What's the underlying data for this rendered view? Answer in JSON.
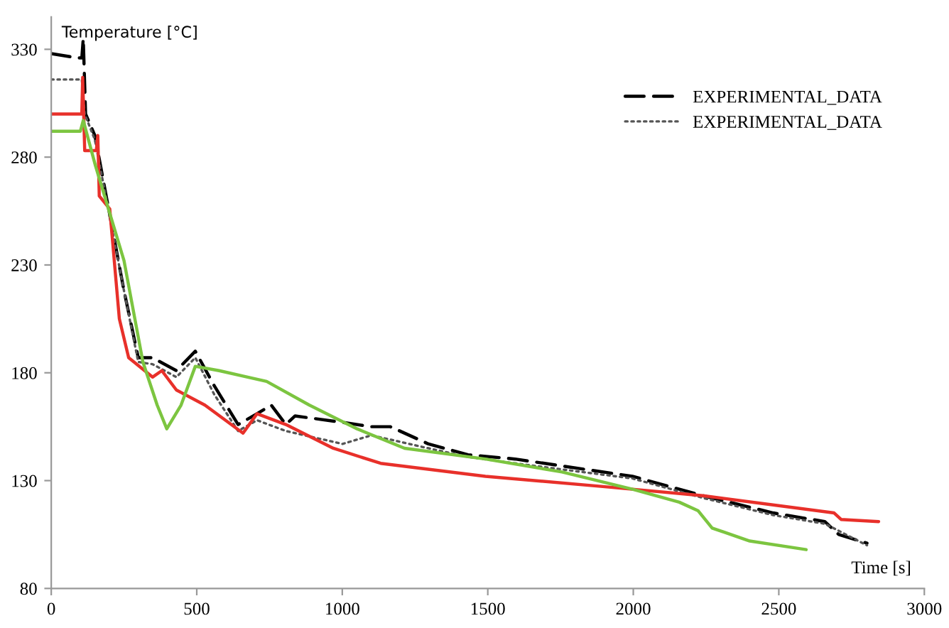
{
  "chart_data": {
    "type": "line",
    "xlabel": "Time [s]",
    "ylabel": "Temperature [°C]",
    "xlim": [
      0,
      3000
    ],
    "xticks": [
      0,
      500,
      1000,
      1500,
      2000,
      2500,
      3000
    ],
    "ylim": [
      80,
      345
    ],
    "yticks": [
      80,
      130,
      180,
      230,
      280,
      330
    ],
    "grid": false,
    "legend": "top right",
    "series": [
      {
        "name": "EXPERIMENTAL_DATA",
        "color": "#000000",
        "line_style": "dashed",
        "x": [
          0,
          90,
          105,
          110,
          118,
          150,
          250,
          299,
          348,
          430,
          495,
          560,
          642,
          707,
          756,
          806,
          838,
          1001,
          1100,
          1165,
          1296,
          1432,
          1594,
          1997,
          2239,
          2481,
          2658,
          2706,
          2803
        ],
        "values": [
          328,
          326,
          326,
          335,
          300,
          290,
          218,
          187,
          187,
          181,
          190,
          174,
          156,
          161,
          165,
          156,
          160,
          157,
          155,
          155,
          147,
          142,
          140,
          132,
          123,
          115,
          111,
          105,
          101
        ]
      },
      {
        "name": "EXPERIMENTAL_DATA",
        "color": "#555555",
        "line_style": "dotted",
        "x": [
          0,
          105,
          115,
          150,
          250,
          299,
          348,
          430,
          495,
          560,
          642,
          707,
          806,
          1001,
          1100,
          1296,
          1432,
          1594,
          1997,
          2239,
          2481,
          2658,
          2803
        ],
        "values": [
          316,
          316,
          300,
          288,
          218,
          185,
          184,
          178,
          187,
          170,
          153,
          158,
          153,
          147,
          151,
          145,
          141,
          138,
          131,
          122,
          114,
          110,
          100
        ]
      },
      {
        "color": "#e8302a",
        "line_style": "solid",
        "x": [
          0,
          100,
          105,
          108,
          115,
          155,
          160,
          165,
          201,
          234,
          266,
          348,
          380,
          430,
          528,
          659,
          707,
          806,
          969,
          1132,
          1492,
          1916,
          2239,
          2690,
          2714,
          2843
        ],
        "values": [
          300,
          300,
          300,
          317,
          283,
          283,
          290,
          262,
          256,
          205,
          187,
          178,
          181,
          172,
          165,
          152,
          161,
          156,
          145,
          138,
          132,
          127,
          123,
          115,
          112,
          111
        ]
      },
      {
        "color": "#7cc540",
        "line_style": "solid",
        "x": [
          0,
          100,
          110,
          152,
          250,
          315,
          364,
          397,
          446,
          495,
          577,
          675,
          740,
          887,
          1051,
          1214,
          1492,
          1755,
          1997,
          2158,
          2223,
          2271,
          2400,
          2594
        ],
        "values": [
          292,
          292,
          297,
          276,
          232,
          185,
          165,
          154,
          165,
          183,
          181,
          178,
          176,
          165,
          154,
          145,
          140,
          134,
          126,
          120,
          116,
          108,
          102,
          98
        ]
      }
    ]
  }
}
